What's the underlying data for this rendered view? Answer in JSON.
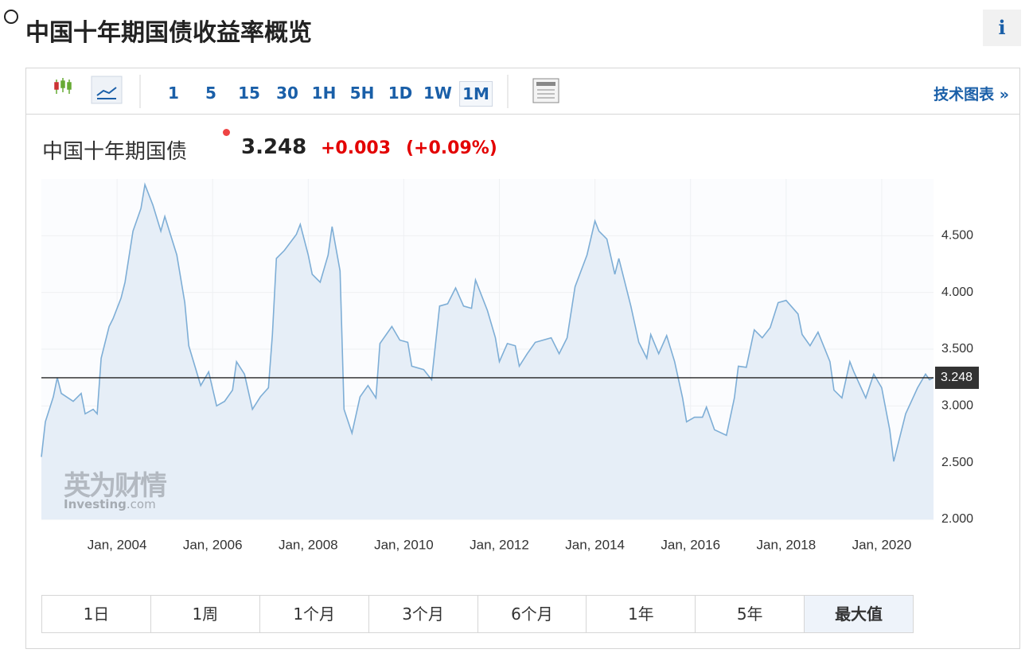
{
  "header": {
    "title": "中国十年期国债收益率概览",
    "info": "i"
  },
  "toolbar": {
    "intervals": [
      "1",
      "5",
      "15",
      "30",
      "1H",
      "5H",
      "1D",
      "1W",
      "1M"
    ],
    "active": 8,
    "link": "技术图表 »"
  },
  "quote": {
    "name": "中国十年期国债",
    "change": "+0.003",
    "change_pct": "(+0.09%)"
  },
  "watermark": {
    "brand": "英为财情",
    "site": "Investing",
    "domain": ".com"
  },
  "ranges": [
    "1日",
    "1周",
    "1个月",
    "3个月",
    "6个月",
    "1年",
    "5年",
    "最大值"
  ],
  "chart_data": {
    "type": "line",
    "color": "#7eaed6",
    "fill": "#e6eef7",
    "grid": true,
    "last": 3.248,
    "x": [
      "2002-06",
      "2002-07",
      "2002-09",
      "2002-10",
      "2002-11",
      "2003-02",
      "2003-04",
      "2003-05",
      "2003-07",
      "2003-08",
      "2003-09",
      "2003-11",
      "2003-12",
      "2004-02",
      "2004-03",
      "2004-05",
      "2004-07",
      "2004-08",
      "2004-10",
      "2004-12",
      "2005-01",
      "2005-04",
      "2005-06",
      "2005-07",
      "2005-10",
      "2005-12",
      "2006-02",
      "2006-04",
      "2006-06",
      "2006-07",
      "2006-09",
      "2006-11",
      "2007-01",
      "2007-03",
      "2007-04",
      "2007-05",
      "2007-07",
      "2007-10",
      "2007-11",
      "2008-01",
      "2008-02",
      "2008-04",
      "2008-06",
      "2008-07",
      "2008-09",
      "2008-10",
      "2008-12",
      "2009-02",
      "2009-04",
      "2009-06",
      "2009-07",
      "2009-10",
      "2009-12",
      "2010-02",
      "2010-03",
      "2010-06",
      "2010-08",
      "2010-10",
      "2010-12",
      "2011-02",
      "2011-04",
      "2011-06",
      "2011-07",
      "2011-10",
      "2011-12",
      "2012-01",
      "2012-03",
      "2012-05",
      "2012-06",
      "2012-08",
      "2012-10",
      "2013-02",
      "2013-04",
      "2013-06",
      "2013-08",
      "2013-11",
      "2014-01",
      "2014-02",
      "2014-04",
      "2014-06",
      "2014-07",
      "2014-10",
      "2014-12",
      "2015-02",
      "2015-03",
      "2015-05",
      "2015-07",
      "2015-09",
      "2015-11",
      "2015-12",
      "2016-02",
      "2016-04",
      "2016-05",
      "2016-07",
      "2016-10",
      "2016-12",
      "2017-01",
      "2017-03",
      "2017-05",
      "2017-07",
      "2017-09",
      "2017-11",
      "2018-01",
      "2018-04",
      "2018-05",
      "2018-07",
      "2018-09",
      "2018-12",
      "2019-01",
      "2019-03",
      "2019-05",
      "2019-06",
      "2019-09",
      "2019-11",
      "2020-01",
      "2020-03",
      "2020-04",
      "2020-07",
      "2020-10",
      "2020-12",
      "2021-01",
      "2021-02"
    ],
    "series": [
      {
        "name": "中国十年期国债",
        "values": [
          2.55,
          2.86,
          3.08,
          3.25,
          3.11,
          3.04,
          3.11,
          2.93,
          2.97,
          2.93,
          3.42,
          3.7,
          3.77,
          3.95,
          4.09,
          4.54,
          4.74,
          4.95,
          4.77,
          4.54,
          4.67,
          4.33,
          3.91,
          3.53,
          3.18,
          3.3,
          3.0,
          3.04,
          3.14,
          3.39,
          3.28,
          2.97,
          3.08,
          3.16,
          3.63,
          4.3,
          4.37,
          4.51,
          4.6,
          4.33,
          4.16,
          4.09,
          4.33,
          4.58,
          4.19,
          2.97,
          2.76,
          3.08,
          3.18,
          3.07,
          3.55,
          3.7,
          3.58,
          3.56,
          3.35,
          3.32,
          3.23,
          3.88,
          3.9,
          4.04,
          3.88,
          3.86,
          4.11,
          3.84,
          3.6,
          3.39,
          3.55,
          3.53,
          3.35,
          3.46,
          3.56,
          3.6,
          3.46,
          3.6,
          4.05,
          4.33,
          4.63,
          4.54,
          4.47,
          4.16,
          4.3,
          3.88,
          3.56,
          3.42,
          3.63,
          3.46,
          3.62,
          3.39,
          3.07,
          2.86,
          2.9,
          2.9,
          2.99,
          2.79,
          2.74,
          3.07,
          3.35,
          3.34,
          3.67,
          3.6,
          3.69,
          3.91,
          3.93,
          3.81,
          3.63,
          3.53,
          3.65,
          3.39,
          3.14,
          3.07,
          3.39,
          3.3,
          3.07,
          3.28,
          3.16,
          2.79,
          2.51,
          2.93,
          3.16,
          3.28,
          3.23,
          3.25
        ]
      }
    ],
    "xlim": [
      "2002-06",
      "2021-02"
    ],
    "xticks": [
      {
        "value": "2004-01",
        "label": "Jan, 2004"
      },
      {
        "value": "2006-01",
        "label": "Jan, 2006"
      },
      {
        "value": "2008-01",
        "label": "Jan, 2008"
      },
      {
        "value": "2010-01",
        "label": "Jan, 2010"
      },
      {
        "value": "2012-01",
        "label": "Jan, 2012"
      },
      {
        "value": "2014-01",
        "label": "Jan, 2014"
      },
      {
        "value": "2016-01",
        "label": "Jan, 2016"
      },
      {
        "value": "2018-01",
        "label": "Jan, 2018"
      },
      {
        "value": "2020-01",
        "label": "Jan, 2020"
      }
    ],
    "ylim": [
      2,
      5
    ],
    "yticks": [
      {
        "value": 2,
        "label": "2.000"
      },
      {
        "value": 2.5,
        "label": "2.500"
      },
      {
        "value": 3,
        "label": "3.000"
      },
      {
        "value": 3.5,
        "label": "3.500"
      },
      {
        "value": 4,
        "label": "4.000"
      },
      {
        "value": 4.5,
        "label": "4.500"
      }
    ]
  }
}
